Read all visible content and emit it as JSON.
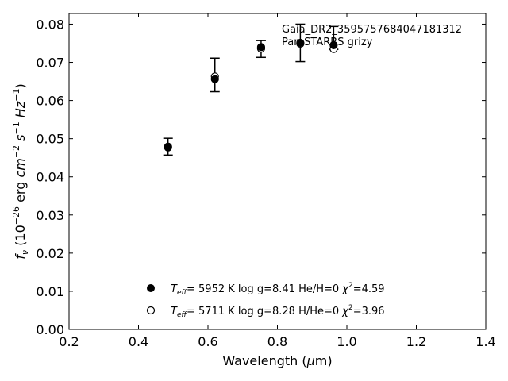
{
  "chart_data": {
    "type": "scatter",
    "title": "",
    "xlabel": "Wavelength (μm)",
    "ylabel": "fν (10⁻²⁶ erg cm⁻² s⁻¹ Hz⁻¹)",
    "xlim": [
      0.2,
      1.4
    ],
    "ylim": [
      0.0,
      0.0828
    ],
    "xticks": [
      "0.2",
      "0.4",
      "0.6",
      "0.8",
      "1.0",
      "1.2",
      "1.4"
    ],
    "yticks": [
      "0.00",
      "0.01",
      "0.02",
      "0.03",
      "0.04",
      "0.05",
      "0.06",
      "0.07",
      "0.08"
    ],
    "annotations": [
      "Gaia_DR2_3595757684047181312",
      "Pan-STARRS grizy"
    ],
    "grid": false,
    "legend_location": "bottom-center",
    "observed": {
      "x": [
        0.485,
        0.62,
        0.753,
        0.866,
        0.962
      ],
      "y": [
        0.0479,
        0.0667,
        0.0735,
        0.0751,
        0.0764
      ],
      "yerr": [
        0.0022,
        0.0044,
        0.0022,
        0.0049,
        0.003
      ]
    },
    "series": [
      {
        "name": "T_eff= 5952 K log g=8.41 He/H=0 χ²=4.59",
        "marker": "filled",
        "x": [
          0.485,
          0.62,
          0.753,
          0.866,
          0.962
        ],
        "y": [
          0.0477,
          0.0656,
          0.074,
          0.0751,
          0.0745
        ]
      },
      {
        "name": "T_eff= 5711 K log g=8.28 H/He=0 χ²=3.96",
        "marker": "open",
        "x": [
          0.485,
          0.62,
          0.753,
          0.866,
          0.962
        ],
        "y": [
          0.0479,
          0.0663,
          0.0736,
          0.0749,
          0.0735
        ]
      }
    ],
    "legend": [
      {
        "marker": "filled",
        "teff_value": "=  5952 K  log g=8.41  He/H=0  ",
        "chi_value": "=4.59"
      },
      {
        "marker": "open",
        "teff_value": "=  5711 K  log g=8.28  H/He=0  ",
        "chi_value": "=3.96"
      }
    ],
    "colors": {
      "marker": "#000000",
      "axis": "#000000",
      "background": "#ffffff"
    }
  }
}
